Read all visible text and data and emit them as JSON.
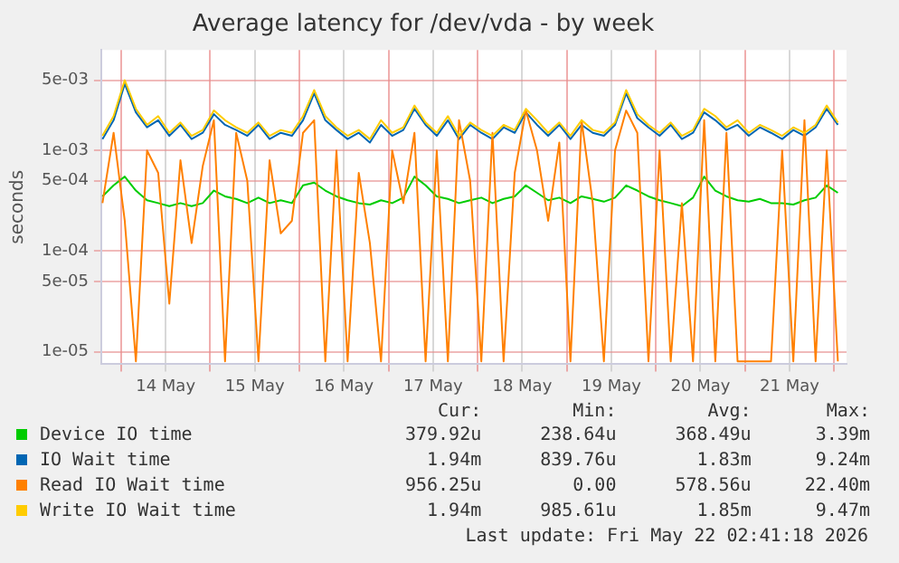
{
  "chart_data": {
    "type": "line",
    "title": "Average latency for /dev/vda - by week",
    "ylabel": "seconds",
    "log": "y",
    "grid": true,
    "legend": "bottom",
    "marker": "none",
    "line_style": "solid",
    "x": [
      "2026-05-13T19:00",
      "2026-05-13T22:00",
      "2026-05-14T01:00",
      "2026-05-14T04:00",
      "2026-05-14T07:00",
      "2026-05-14T10:00",
      "2026-05-14T13:00",
      "2026-05-14T16:00",
      "2026-05-14T19:00",
      "2026-05-14T22:00",
      "2026-05-15T01:00",
      "2026-05-15T04:00",
      "2026-05-15T07:00",
      "2026-05-15T10:00",
      "2026-05-15T13:00",
      "2026-05-15T16:00",
      "2026-05-15T19:00",
      "2026-05-15T22:00",
      "2026-05-16T01:00",
      "2026-05-16T04:00",
      "2026-05-16T07:00",
      "2026-05-16T10:00",
      "2026-05-16T13:00",
      "2026-05-16T16:00",
      "2026-05-16T19:00",
      "2026-05-16T22:00",
      "2026-05-17T01:00",
      "2026-05-17T04:00",
      "2026-05-17T07:00",
      "2026-05-17T10:00",
      "2026-05-17T13:00",
      "2026-05-17T16:00",
      "2026-05-17T19:00",
      "2026-05-17T22:00",
      "2026-05-18T01:00",
      "2026-05-18T04:00",
      "2026-05-18T07:00",
      "2026-05-18T10:00",
      "2026-05-18T13:00",
      "2026-05-18T16:00",
      "2026-05-18T19:00",
      "2026-05-18T22:00",
      "2026-05-19T01:00",
      "2026-05-19T04:00",
      "2026-05-19T07:00",
      "2026-05-19T10:00",
      "2026-05-19T13:00",
      "2026-05-19T16:00",
      "2026-05-19T19:00",
      "2026-05-19T22:00",
      "2026-05-20T01:00",
      "2026-05-20T04:00",
      "2026-05-20T07:00",
      "2026-05-20T10:00",
      "2026-05-20T13:00",
      "2026-05-20T16:00",
      "2026-05-20T19:00",
      "2026-05-20T22:00",
      "2026-05-21T01:00",
      "2026-05-21T04:00",
      "2026-05-21T07:00",
      "2026-05-21T10:00",
      "2026-05-21T13:00",
      "2026-05-21T16:00",
      "2026-05-21T19:00",
      "2026-05-21T22:00",
      "2026-05-22T01:00"
    ],
    "xlim": [
      "2026-05-13T18:40",
      "2026-05-22T03:20"
    ],
    "xticks": [
      {
        "value": "2026-05-14T00:00",
        "label": null
      },
      {
        "value": "2026-05-14T12:00",
        "label": "14 May"
      },
      {
        "value": "2026-05-15T00:00",
        "label": null
      },
      {
        "value": "2026-05-15T12:00",
        "label": "15 May"
      },
      {
        "value": "2026-05-16T00:00",
        "label": null
      },
      {
        "value": "2026-05-16T12:00",
        "label": "16 May"
      },
      {
        "value": "2026-05-17T00:00",
        "label": null
      },
      {
        "value": "2026-05-17T12:00",
        "label": "17 May"
      },
      {
        "value": "2026-05-18T00:00",
        "label": null
      },
      {
        "value": "2026-05-18T12:00",
        "label": "18 May"
      },
      {
        "value": "2026-05-19T00:00",
        "label": null
      },
      {
        "value": "2026-05-19T12:00",
        "label": "19 May"
      },
      {
        "value": "2026-05-20T00:00",
        "label": null
      },
      {
        "value": "2026-05-20T12:00",
        "label": "20 May"
      },
      {
        "value": "2026-05-21T00:00",
        "label": null
      },
      {
        "value": "2026-05-21T12:00",
        "label": "21 May"
      },
      {
        "value": "2026-05-22T00:00",
        "label": null
      }
    ],
    "ylim": [
      7.5e-06,
      0.01
    ],
    "yticks": [
      {
        "value": 1e-05,
        "label": "1e-05"
      },
      {
        "value": 5e-05,
        "label": "5e-05"
      },
      {
        "value": 0.0001,
        "label": "1e-04"
      },
      {
        "value": 0.0005,
        "label": "5e-04"
      },
      {
        "value": 0.001,
        "label": "1e-03"
      },
      {
        "value": 0.005,
        "label": "5e-03"
      }
    ],
    "series": [
      {
        "name": "Device IO time",
        "color": "#00cc00",
        "values": [
          0.00035,
          0.00045,
          0.00055,
          0.0004,
          0.00032,
          0.0003,
          0.00028,
          0.0003,
          0.00028,
          0.0003,
          0.0004,
          0.00035,
          0.00033,
          0.0003,
          0.00034,
          0.0003,
          0.00032,
          0.0003,
          0.00045,
          0.00048,
          0.0004,
          0.00035,
          0.00032,
          0.0003,
          0.00029,
          0.00032,
          0.0003,
          0.00034,
          0.00055,
          0.00045,
          0.00035,
          0.00033,
          0.0003,
          0.00032,
          0.00034,
          0.0003,
          0.00033,
          0.00035,
          0.00045,
          0.00038,
          0.00032,
          0.00034,
          0.0003,
          0.00035,
          0.00033,
          0.00031,
          0.00034,
          0.00045,
          0.0004,
          0.00035,
          0.00032,
          0.0003,
          0.00028,
          0.00034,
          0.00055,
          0.0004,
          0.00035,
          0.00032,
          0.00031,
          0.00033,
          0.0003,
          0.0003,
          0.00029,
          0.00032,
          0.00034,
          0.00045,
          0.00038
        ]
      },
      {
        "name": "IO Wait time",
        "color": "#0066b3",
        "values": [
          0.0013,
          0.002,
          0.0046,
          0.0024,
          0.0017,
          0.002,
          0.0014,
          0.0018,
          0.0013,
          0.0015,
          0.0023,
          0.0018,
          0.0016,
          0.0014,
          0.0018,
          0.0013,
          0.0015,
          0.0014,
          0.002,
          0.0037,
          0.002,
          0.0016,
          0.0013,
          0.0015,
          0.0012,
          0.0018,
          0.0014,
          0.0016,
          0.0026,
          0.0018,
          0.0014,
          0.002,
          0.0013,
          0.0018,
          0.0015,
          0.0013,
          0.0017,
          0.0015,
          0.0024,
          0.0018,
          0.0014,
          0.0018,
          0.0013,
          0.0018,
          0.0015,
          0.0014,
          0.0018,
          0.0037,
          0.0021,
          0.0017,
          0.0014,
          0.0018,
          0.0013,
          0.0015,
          0.0024,
          0.002,
          0.0016,
          0.0018,
          0.0014,
          0.0017,
          0.0015,
          0.0013,
          0.0016,
          0.0014,
          0.0017,
          0.0026,
          0.0018
        ]
      },
      {
        "name": "Read IO Wait time",
        "color": "#ff8000",
        "values": [
          0.0003,
          0.0015,
          0.0002,
          8e-06,
          0.001,
          0.0006,
          3e-05,
          0.0008,
          0.00012,
          0.0007,
          0.002,
          8e-06,
          0.0015,
          0.0005,
          8e-06,
          0.0008,
          0.00015,
          0.0002,
          0.0015,
          0.002,
          8e-06,
          0.001,
          8e-06,
          0.0006,
          0.00012,
          8e-06,
          0.001,
          0.0003,
          0.0015,
          8e-06,
          0.001,
          8e-06,
          0.002,
          0.0005,
          8e-06,
          0.0015,
          8e-06,
          0.0006,
          0.0025,
          0.001,
          0.0002,
          0.0012,
          8e-06,
          0.002,
          0.0003,
          8e-06,
          0.001,
          0.0025,
          0.0015,
          8e-06,
          0.001,
          8e-06,
          0.0003,
          8e-06,
          0.002,
          8e-06,
          0.0015,
          8e-06,
          8e-06,
          8e-06,
          8e-06,
          0.001,
          8e-06,
          0.002,
          8e-06,
          0.001,
          8e-06
        ]
      },
      {
        "name": "Write IO Wait time",
        "color": "#ffcc00",
        "values": [
          0.0014,
          0.0022,
          0.005,
          0.0026,
          0.0018,
          0.0022,
          0.0015,
          0.0019,
          0.0014,
          0.0016,
          0.0025,
          0.002,
          0.0017,
          0.0015,
          0.0019,
          0.0014,
          0.0016,
          0.0015,
          0.0022,
          0.004,
          0.0022,
          0.0017,
          0.0014,
          0.0016,
          0.0013,
          0.002,
          0.0015,
          0.0017,
          0.0028,
          0.0019,
          0.0015,
          0.0022,
          0.0014,
          0.0019,
          0.0016,
          0.0014,
          0.0018,
          0.0016,
          0.0026,
          0.002,
          0.0015,
          0.0019,
          0.0014,
          0.002,
          0.0016,
          0.0015,
          0.0019,
          0.004,
          0.0023,
          0.0018,
          0.0015,
          0.0019,
          0.0014,
          0.0016,
          0.0026,
          0.0022,
          0.0017,
          0.002,
          0.0015,
          0.0018,
          0.0016,
          0.0014,
          0.0017,
          0.0015,
          0.0018,
          0.0028,
          0.0019
        ]
      }
    ],
    "annotations": [
      "Cur:",
      "Min:",
      "Avg:",
      "Max:",
      "379.92u",
      "238.64u",
      "368.49u",
      "3.39m",
      "1.94m",
      "839.76u",
      "1.83m",
      "9.24m",
      "956.25u",
      "0.00",
      "578.56u",
      "22.40m",
      "1.94m",
      "985.61u",
      "1.85m",
      "9.47m",
      "Last update: Fri May 22 02:41:18 2026"
    ]
  }
}
